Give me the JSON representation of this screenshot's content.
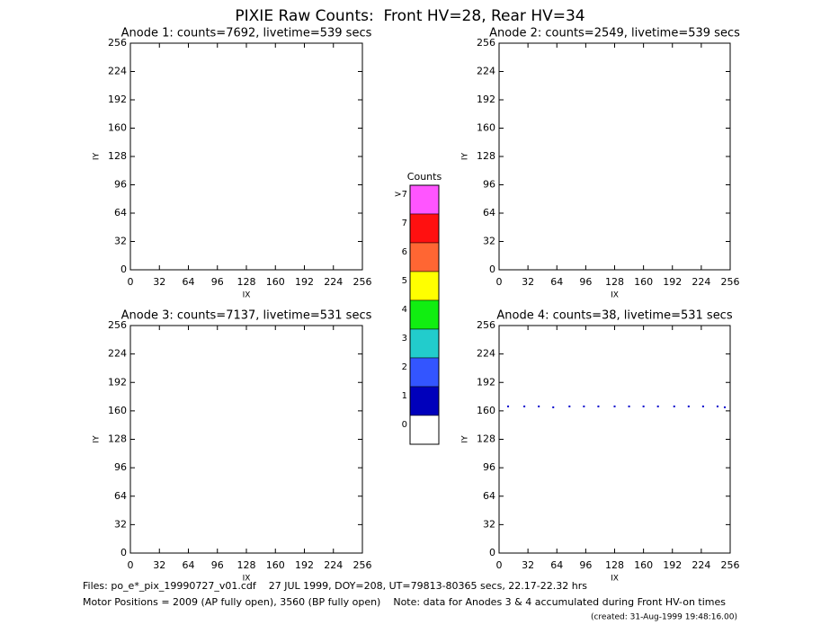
{
  "title": "PIXIE Raw Counts:  Front HV=28, Rear HV=34",
  "chart_data": [
    {
      "type": "scatter",
      "title": "Anode 1: counts=7692, livetime=539 secs",
      "xlabel": "IX",
      "ylabel": "IY",
      "xlim": [
        0,
        256
      ],
      "ylim": [
        0,
        256
      ],
      "xticks": [
        0,
        32,
        64,
        96,
        128,
        160,
        192,
        224,
        256
      ],
      "yticks": [
        0,
        32,
        64,
        96,
        128,
        160,
        192,
        224,
        256
      ],
      "series": []
    },
    {
      "type": "scatter",
      "title": "Anode 2: counts=2549, livetime=539 secs",
      "xlabel": "IX",
      "ylabel": "IY",
      "xlim": [
        0,
        256
      ],
      "ylim": [
        0,
        256
      ],
      "xticks": [
        0,
        32,
        64,
        96,
        128,
        160,
        192,
        224,
        256
      ],
      "yticks": [
        0,
        32,
        64,
        96,
        128,
        160,
        192,
        224,
        256
      ],
      "series": []
    },
    {
      "type": "scatter",
      "title": "Anode 3: counts=7137, livetime=531 secs",
      "xlabel": "IX",
      "ylabel": "IY",
      "xlim": [
        0,
        256
      ],
      "ylim": [
        0,
        256
      ],
      "xticks": [
        0,
        32,
        64,
        96,
        128,
        160,
        192,
        224,
        256
      ],
      "yticks": [
        0,
        32,
        64,
        96,
        128,
        160,
        192,
        224,
        256
      ],
      "series": []
    },
    {
      "type": "scatter",
      "title": "Anode 4: counts=38, livetime=531 secs",
      "xlabel": "IX",
      "ylabel": "IY",
      "xlim": [
        0,
        256
      ],
      "ylim": [
        0,
        256
      ],
      "xticks": [
        0,
        32,
        64,
        96,
        128,
        160,
        192,
        224,
        256
      ],
      "yticks": [
        0,
        32,
        64,
        96,
        128,
        160,
        192,
        224,
        256
      ],
      "series": [
        {
          "color": "#0000cc",
          "x": [
            10,
            28,
            44,
            60,
            78,
            94,
            110,
            128,
            144,
            160,
            176,
            194,
            210,
            226,
            242,
            250
          ],
          "y": [
            165,
            165,
            165,
            164,
            165,
            165,
            165,
            165,
            165,
            165,
            165,
            165,
            165,
            165,
            165,
            164
          ]
        }
      ]
    }
  ],
  "colorbar": {
    "title": "Counts",
    "labels": [
      ">7",
      "7",
      "6",
      "5",
      "4",
      "3",
      "2",
      "1",
      "0"
    ],
    "colors": [
      "#ff55ff",
      "#ff1010",
      "#ff6633",
      "#ffff00",
      "#11ee11",
      "#22cccc",
      "#3355ff",
      "#0000bb",
      "#ffffff"
    ]
  },
  "footer": {
    "files": "Files: po_e*_pix_19990727_v01.cdf    27 JUL 1999, DOY=208, UT=79813-80365 secs, 22.17-22.32 hrs",
    "motor": "Motor Positions = 2009 (AP fully open), 3560 (BP fully open)    Note: data for Anodes 3 & 4 accumulated during Front HV-on times",
    "created": "(created: 31-Aug-1999 19:48:16.00)"
  }
}
